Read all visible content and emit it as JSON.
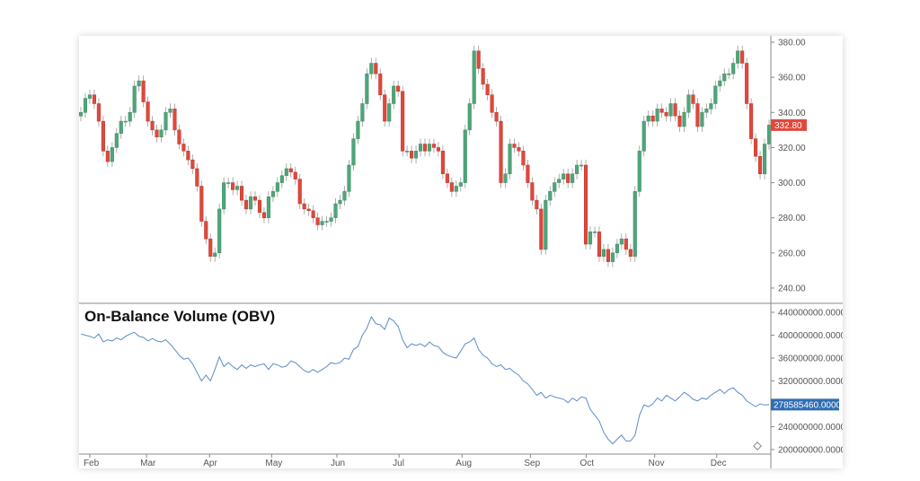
{
  "chart_data": [
    {
      "type": "candlestick",
      "title": "",
      "ylim": [
        232,
        383
      ],
      "yticks": [
        "380.00",
        "360.00",
        "340.00",
        "320.00",
        "300.00",
        "280.00",
        "260.00",
        "240.00"
      ],
      "ytick_values": [
        380,
        360,
        340,
        320,
        300,
        280,
        260,
        240
      ],
      "last_price_label": "332.80",
      "last_price": 332.8,
      "close": [
        340,
        348,
        350,
        345,
        335,
        318,
        312,
        320,
        328,
        335,
        335,
        340,
        355,
        358,
        346,
        335,
        330,
        326,
        330,
        340,
        342,
        330,
        322,
        318,
        313,
        308,
        298,
        278,
        268,
        258,
        260,
        285,
        300,
        300,
        296,
        298,
        290,
        285,
        292,
        290,
        283,
        280,
        292,
        295,
        300,
        304,
        308,
        306,
        302,
        288,
        285,
        284,
        280,
        276,
        278,
        278,
        280,
        288,
        290,
        295,
        310,
        325,
        335,
        345,
        362,
        368,
        362,
        350,
        335,
        345,
        355,
        352,
        318,
        318,
        314,
        318,
        322,
        318,
        322,
        320,
        318,
        305,
        300,
        295,
        298,
        300,
        330,
        345,
        375,
        365,
        356,
        350,
        340,
        335,
        300,
        305,
        322,
        320,
        318,
        310,
        300,
        290,
        285,
        262,
        290,
        295,
        300,
        302,
        305,
        300,
        305,
        310,
        310,
        265,
        272,
        272,
        258,
        262,
        255,
        260,
        265,
        268,
        262,
        258,
        295,
        318,
        335,
        338,
        335,
        342,
        340,
        338,
        345,
        338,
        332,
        340,
        350,
        345,
        332,
        340,
        342,
        345,
        355,
        358,
        362,
        362,
        368,
        375,
        368,
        345,
        325,
        315,
        305,
        322,
        332.8
      ],
      "colors": {
        "up": "#4ea67a",
        "down": "#e0483b"
      }
    },
    {
      "type": "line",
      "title": "On-Balance Volume (OBV)",
      "ylim": [
        195000000,
        450000000
      ],
      "yticks": [
        "440000000.0000",
        "400000000.0000",
        "360000000.0000",
        "320000000.0000",
        "240000000.0000",
        "200000000.0000"
      ],
      "ytick_values": [
        440000000,
        400000000,
        360000000,
        320000000,
        240000000,
        200000000
      ],
      "last_value_label": "278585460.0000",
      "last_value": 278585460,
      "values_millions": [
        402,
        400,
        398,
        395,
        402,
        388,
        392,
        390,
        395,
        392,
        398,
        402,
        405,
        398,
        396,
        390,
        394,
        390,
        388,
        392,
        384,
        375,
        365,
        358,
        360,
        350,
        335,
        320,
        330,
        320,
        340,
        362,
        345,
        352,
        345,
        340,
        348,
        342,
        348,
        345,
        348,
        350,
        340,
        350,
        348,
        344,
        346,
        355,
        352,
        345,
        338,
        335,
        340,
        335,
        340,
        345,
        352,
        350,
        352,
        360,
        358,
        375,
        380,
        400,
        412,
        432,
        420,
        418,
        410,
        430,
        425,
        415,
        392,
        378,
        385,
        382,
        385,
        380,
        388,
        382,
        380,
        370,
        365,
        362,
        360,
        372,
        385,
        388,
        395,
        375,
        365,
        360,
        350,
        345,
        348,
        340,
        342,
        335,
        330,
        320,
        315,
        305,
        295,
        300,
        290,
        295,
        292,
        290,
        288,
        282,
        290,
        285,
        292,
        290,
        270,
        260,
        250,
        230,
        218,
        210,
        218,
        225,
        215,
        215,
        225,
        260,
        278,
        275,
        280,
        290,
        285,
        295,
        290,
        285,
        292,
        300,
        295,
        288,
        285,
        290,
        288,
        295,
        300,
        305,
        298,
        305,
        308,
        300,
        295,
        285,
        280,
        275,
        280,
        278,
        278.6
      ],
      "color": "#5b8cc8"
    }
  ],
  "x_axis": {
    "ticks": [
      {
        "label": "Feb",
        "index": 2
      },
      {
        "label": "Mar",
        "index": 14.7
      },
      {
        "label": "Apr",
        "index": 28.8
      },
      {
        "label": "May",
        "index": 42.7
      },
      {
        "label": "Jun",
        "index": 57.3
      },
      {
        "label": "Jul",
        "index": 71.2
      },
      {
        "label": "Aug",
        "index": 85.3
      },
      {
        "label": "Sep",
        "index": 100.6
      },
      {
        "label": "Oct",
        "index": 113.1
      },
      {
        "label": "Nov",
        "index": 128.4
      },
      {
        "label": "Dec",
        "index": 142.3
      }
    ]
  },
  "icons": {
    "settings": "diamond-icon"
  }
}
